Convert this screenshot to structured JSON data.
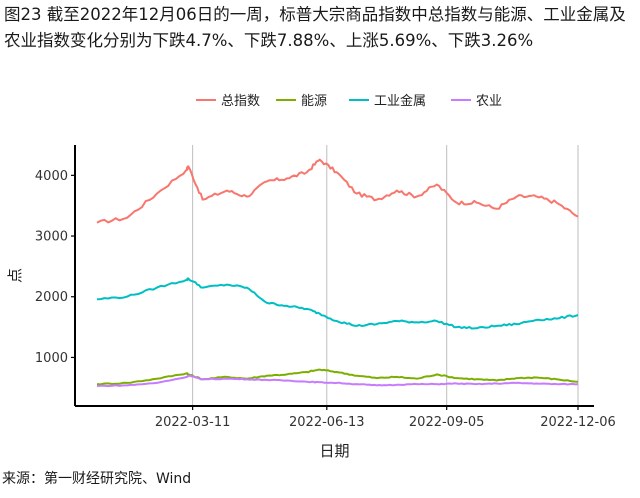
{
  "figure": {
    "title": "图23  截至2022年12月06日的一周，标普大宗商品指数中总指数与能源、工业金属及农业指数变化分别为下跌4.7%、下跌7.88%、上涨5.69%、下跌3.26%",
    "source": "来源：第一财经研究院、Wind"
  },
  "chart_data": {
    "type": "line",
    "title": "",
    "xlabel": "日期",
    "ylabel": "点",
    "x_ticks": [
      "2022-03-11",
      "2022-06-13",
      "2022-09-05",
      "2022-12-06"
    ],
    "y_ticks": [
      1000,
      2000,
      3000,
      4000
    ],
    "x_range": [
      "2022-01-03",
      "2022-12-06"
    ],
    "ylim": [
      200,
      4500
    ],
    "grid": "vertical gridlines at x ticks",
    "legend_position": "top",
    "x": [
      "2022-01-03",
      "2022-01-24",
      "2022-02-14",
      "2022-03-07",
      "2022-03-08",
      "2022-03-18",
      "2022-04-04",
      "2022-04-18",
      "2022-05-02",
      "2022-05-16",
      "2022-05-30",
      "2022-06-08",
      "2022-06-20",
      "2022-07-04",
      "2022-07-18",
      "2022-08-01",
      "2022-08-15",
      "2022-08-29",
      "2022-09-12",
      "2022-09-26",
      "2022-10-10",
      "2022-10-24",
      "2022-11-07",
      "2022-11-21",
      "2022-12-06"
    ],
    "series": [
      {
        "name": "总指数",
        "color": "#f8766d",
        "values": [
          3220,
          3300,
          3700,
          4100,
          4150,
          3600,
          3750,
          3650,
          3900,
          3950,
          4050,
          4260,
          4050,
          3700,
          3600,
          3750,
          3650,
          3850,
          3550,
          3550,
          3450,
          3650,
          3650,
          3550,
          3320
        ]
      },
      {
        "name": "能源",
        "color": "#7cae00",
        "values": [
          560,
          580,
          650,
          740,
          720,
          640,
          680,
          650,
          700,
          720,
          760,
          800,
          760,
          700,
          660,
          680,
          650,
          720,
          660,
          640,
          620,
          660,
          670,
          640,
          600
        ]
      },
      {
        "name": "工业金属",
        "color": "#00bfc4",
        "values": [
          1960,
          2000,
          2150,
          2280,
          2300,
          2150,
          2200,
          2150,
          1900,
          1850,
          1800,
          1720,
          1600,
          1520,
          1550,
          1600,
          1580,
          1600,
          1500,
          1480,
          1520,
          1550,
          1620,
          1640,
          1700
        ]
      },
      {
        "name": "农业",
        "color": "#c77cff",
        "values": [
          530,
          540,
          580,
          680,
          700,
          640,
          650,
          640,
          630,
          620,
          600,
          590,
          580,
          560,
          540,
          550,
          560,
          560,
          570,
          560,
          570,
          580,
          570,
          560,
          560
        ]
      }
    ]
  }
}
